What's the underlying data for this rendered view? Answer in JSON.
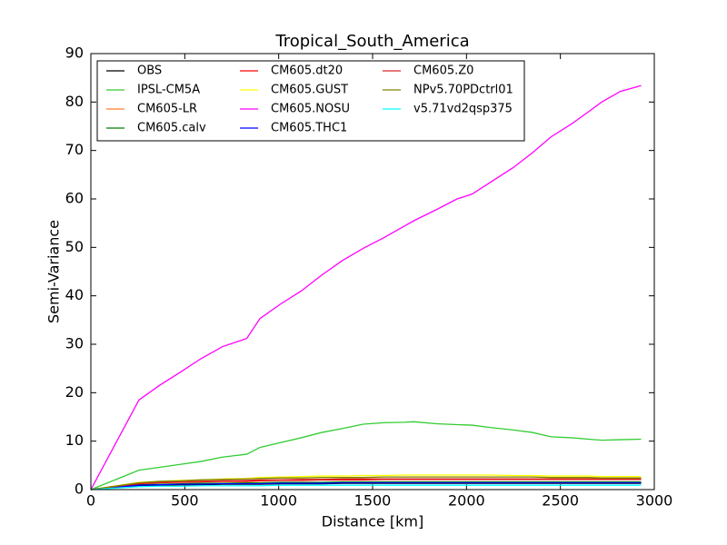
{
  "chart_data": {
    "type": "line",
    "title": "Tropical_South_America",
    "x_label": "Distance [km]",
    "y_label": "Semi-Variance",
    "x": [
      0,
      256,
      365,
      475,
      585,
      700,
      830,
      900,
      1010,
      1120,
      1230,
      1340,
      1450,
      1560,
      1670,
      1720,
      1840,
      1950,
      2030,
      2130,
      2250,
      2350,
      2450,
      2560,
      2650,
      2720,
      2820,
      2930
    ],
    "xlim": [
      0,
      3000
    ],
    "xticks": [
      0,
      500,
      1000,
      1500,
      2000,
      2500,
      3000
    ],
    "ylim": [
      0,
      90
    ],
    "yticks": [
      0,
      10,
      20,
      30,
      40,
      50,
      60,
      70,
      80,
      90
    ],
    "legend": "upper left",
    "legend_columns": 3,
    "series": [
      {
        "name": "OBS",
        "color": "#000000",
        "values": [
          0,
          0.8,
          0.9,
          1.0,
          1.0,
          1.1,
          1.1,
          1.1,
          1.2,
          1.2,
          1.2,
          1.3,
          1.3,
          1.3,
          1.3,
          1.3,
          1.3,
          1.3,
          1.3,
          1.3,
          1.3,
          1.3,
          1.3,
          1.3,
          1.3,
          1.3,
          1.3,
          1.3
        ]
      },
      {
        "name": "IPSL-CM5A",
        "color": "#33cc33",
        "values": [
          0,
          4.0,
          4.6,
          5.2,
          5.8,
          6.7,
          7.3,
          8.7,
          9.7,
          10.7,
          11.8,
          12.6,
          13.5,
          13.8,
          13.9,
          14.0,
          13.6,
          13.4,
          13.3,
          12.8,
          12.3,
          11.8,
          10.9,
          10.7,
          10.4,
          10.2,
          10.3,
          10.4
        ]
      },
      {
        "name": "CM605-LR",
        "color": "#ff7f27",
        "values": [
          0,
          1.3,
          1.5,
          1.6,
          1.7,
          1.8,
          1.8,
          1.9,
          2.0,
          2.0,
          2.1,
          2.1,
          2.2,
          2.2,
          2.2,
          2.2,
          2.2,
          2.2,
          2.2,
          2.2,
          2.2,
          2.2,
          2.2,
          2.2,
          2.2,
          2.2,
          2.2,
          2.2
        ]
      },
      {
        "name": "CM605.calv",
        "color": "#008000",
        "values": [
          0,
          1.0,
          1.1,
          1.2,
          1.3,
          1.3,
          1.4,
          1.4,
          1.5,
          1.5,
          1.5,
          1.6,
          1.6,
          1.6,
          1.6,
          1.6,
          1.6,
          1.6,
          1.6,
          1.6,
          1.6,
          1.6,
          1.6,
          1.6,
          1.6,
          1.6,
          1.6,
          1.6
        ]
      },
      {
        "name": "CM605.dt20",
        "color": "#ff0000",
        "values": [
          0,
          1.2,
          1.4,
          1.5,
          1.6,
          1.7,
          1.7,
          1.8,
          1.9,
          1.9,
          2.0,
          2.0,
          2.0,
          2.1,
          2.1,
          2.1,
          2.1,
          2.1,
          2.1,
          2.1,
          2.1,
          2.1,
          2.1,
          2.1,
          2.1,
          2.1,
          2.1,
          2.1
        ]
      },
      {
        "name": "CM605.GUST",
        "color": "#ffff00",
        "values": [
          0,
          1.5,
          1.7,
          1.9,
          2.0,
          2.2,
          2.3,
          2.5,
          2.6,
          2.7,
          2.8,
          2.8,
          2.9,
          2.9,
          3.0,
          3.0,
          3.0,
          3.0,
          3.0,
          3.0,
          2.9,
          2.9,
          2.8,
          2.8,
          2.8,
          2.7,
          2.7,
          2.7
        ]
      },
      {
        "name": "CM605.NOSU",
        "color": "#ff00ff",
        "values": [
          0,
          18.5,
          21.5,
          24.2,
          27.0,
          29.5,
          31.2,
          35.3,
          38.3,
          41.0,
          44.3,
          47.3,
          49.8,
          52.0,
          54.4,
          55.5,
          57.8,
          60.0,
          61.0,
          63.5,
          66.5,
          69.5,
          72.8,
          75.5,
          78.0,
          80.0,
          82.2,
          83.4
        ]
      },
      {
        "name": "CM605.THC1",
        "color": "#0000ff",
        "values": [
          0,
          0.9,
          1.0,
          1.1,
          1.1,
          1.2,
          1.2,
          1.2,
          1.3,
          1.3,
          1.3,
          1.4,
          1.4,
          1.4,
          1.4,
          1.4,
          1.4,
          1.4,
          1.4,
          1.4,
          1.4,
          1.4,
          1.4,
          1.4,
          1.4,
          1.4,
          1.4,
          1.4
        ]
      },
      {
        "name": "CM605.Z0",
        "color": "#d62728",
        "values": [
          0,
          1.3,
          1.5,
          1.6,
          1.7,
          1.8,
          1.9,
          2.0,
          2.0,
          2.1,
          2.1,
          2.2,
          2.2,
          2.2,
          2.2,
          2.2,
          2.2,
          2.2,
          2.2,
          2.2,
          2.2,
          2.2,
          2.2,
          2.2,
          2.2,
          2.2,
          2.2,
          2.2
        ]
      },
      {
        "name": "NPv5.70PDctrl01",
        "color": "#808000",
        "values": [
          0,
          1.4,
          1.7,
          1.8,
          2.0,
          2.1,
          2.2,
          2.3,
          2.4,
          2.4,
          2.5,
          2.5,
          2.5,
          2.6,
          2.6,
          2.6,
          2.6,
          2.6,
          2.6,
          2.6,
          2.6,
          2.6,
          2.5,
          2.5,
          2.5,
          2.4,
          2.4,
          2.4
        ]
      },
      {
        "name": "v5.71vd2qsp375",
        "color": "#00ffff",
        "values": [
          0,
          0.6,
          0.7,
          0.7,
          0.8,
          0.8,
          0.8,
          0.8,
          0.9,
          0.9,
          0.9,
          0.9,
          0.9,
          0.9,
          0.9,
          0.9,
          0.9,
          0.9,
          0.9,
          0.9,
          0.9,
          0.9,
          0.9,
          0.9,
          0.9,
          0.9,
          0.9,
          0.9
        ]
      }
    ]
  }
}
